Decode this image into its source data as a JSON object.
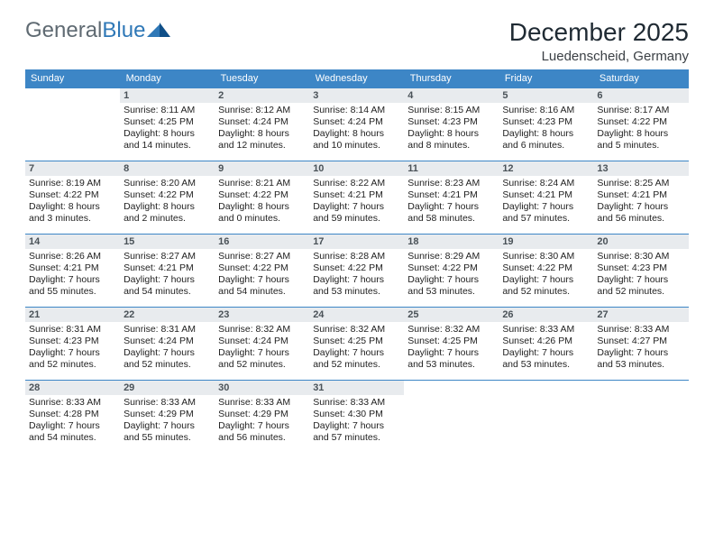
{
  "brand": {
    "part1": "General",
    "part2": "Blue"
  },
  "title": "December 2025",
  "location": "Luedenscheid, Germany",
  "columns": [
    "Sunday",
    "Monday",
    "Tuesday",
    "Wednesday",
    "Thursday",
    "Friday",
    "Saturday"
  ],
  "colors": {
    "header_bg": "#3d86c6",
    "header_text": "#ffffff",
    "daynum_bg": "#e8ebee",
    "border": "#3d86c6",
    "brand_gray": "#5f6a72",
    "brand_blue": "#2f78b7"
  },
  "weeks": [
    [
      null,
      {
        "n": "1",
        "sr": "8:11 AM",
        "ss": "4:25 PM",
        "d": "8 hours and 14 minutes."
      },
      {
        "n": "2",
        "sr": "8:12 AM",
        "ss": "4:24 PM",
        "d": "8 hours and 12 minutes."
      },
      {
        "n": "3",
        "sr": "8:14 AM",
        "ss": "4:24 PM",
        "d": "8 hours and 10 minutes."
      },
      {
        "n": "4",
        "sr": "8:15 AM",
        "ss": "4:23 PM",
        "d": "8 hours and 8 minutes."
      },
      {
        "n": "5",
        "sr": "8:16 AM",
        "ss": "4:23 PM",
        "d": "8 hours and 6 minutes."
      },
      {
        "n": "6",
        "sr": "8:17 AM",
        "ss": "4:22 PM",
        "d": "8 hours and 5 minutes."
      }
    ],
    [
      {
        "n": "7",
        "sr": "8:19 AM",
        "ss": "4:22 PM",
        "d": "8 hours and 3 minutes."
      },
      {
        "n": "8",
        "sr": "8:20 AM",
        "ss": "4:22 PM",
        "d": "8 hours and 2 minutes."
      },
      {
        "n": "9",
        "sr": "8:21 AM",
        "ss": "4:22 PM",
        "d": "8 hours and 0 minutes."
      },
      {
        "n": "10",
        "sr": "8:22 AM",
        "ss": "4:21 PM",
        "d": "7 hours and 59 minutes."
      },
      {
        "n": "11",
        "sr": "8:23 AM",
        "ss": "4:21 PM",
        "d": "7 hours and 58 minutes."
      },
      {
        "n": "12",
        "sr": "8:24 AM",
        "ss": "4:21 PM",
        "d": "7 hours and 57 minutes."
      },
      {
        "n": "13",
        "sr": "8:25 AM",
        "ss": "4:21 PM",
        "d": "7 hours and 56 minutes."
      }
    ],
    [
      {
        "n": "14",
        "sr": "8:26 AM",
        "ss": "4:21 PM",
        "d": "7 hours and 55 minutes."
      },
      {
        "n": "15",
        "sr": "8:27 AM",
        "ss": "4:21 PM",
        "d": "7 hours and 54 minutes."
      },
      {
        "n": "16",
        "sr": "8:27 AM",
        "ss": "4:22 PM",
        "d": "7 hours and 54 minutes."
      },
      {
        "n": "17",
        "sr": "8:28 AM",
        "ss": "4:22 PM",
        "d": "7 hours and 53 minutes."
      },
      {
        "n": "18",
        "sr": "8:29 AM",
        "ss": "4:22 PM",
        "d": "7 hours and 53 minutes."
      },
      {
        "n": "19",
        "sr": "8:30 AM",
        "ss": "4:22 PM",
        "d": "7 hours and 52 minutes."
      },
      {
        "n": "20",
        "sr": "8:30 AM",
        "ss": "4:23 PM",
        "d": "7 hours and 52 minutes."
      }
    ],
    [
      {
        "n": "21",
        "sr": "8:31 AM",
        "ss": "4:23 PM",
        "d": "7 hours and 52 minutes."
      },
      {
        "n": "22",
        "sr": "8:31 AM",
        "ss": "4:24 PM",
        "d": "7 hours and 52 minutes."
      },
      {
        "n": "23",
        "sr": "8:32 AM",
        "ss": "4:24 PM",
        "d": "7 hours and 52 minutes."
      },
      {
        "n": "24",
        "sr": "8:32 AM",
        "ss": "4:25 PM",
        "d": "7 hours and 52 minutes."
      },
      {
        "n": "25",
        "sr": "8:32 AM",
        "ss": "4:25 PM",
        "d": "7 hours and 53 minutes."
      },
      {
        "n": "26",
        "sr": "8:33 AM",
        "ss": "4:26 PM",
        "d": "7 hours and 53 minutes."
      },
      {
        "n": "27",
        "sr": "8:33 AM",
        "ss": "4:27 PM",
        "d": "7 hours and 53 minutes."
      }
    ],
    [
      {
        "n": "28",
        "sr": "8:33 AM",
        "ss": "4:28 PM",
        "d": "7 hours and 54 minutes."
      },
      {
        "n": "29",
        "sr": "8:33 AM",
        "ss": "4:29 PM",
        "d": "7 hours and 55 minutes."
      },
      {
        "n": "30",
        "sr": "8:33 AM",
        "ss": "4:29 PM",
        "d": "7 hours and 56 minutes."
      },
      {
        "n": "31",
        "sr": "8:33 AM",
        "ss": "4:30 PM",
        "d": "7 hours and 57 minutes."
      },
      null,
      null,
      null
    ]
  ],
  "labels": {
    "sunrise": "Sunrise:",
    "sunset": "Sunset:",
    "daylight": "Daylight:"
  }
}
